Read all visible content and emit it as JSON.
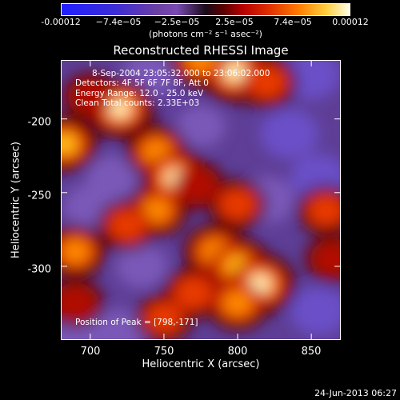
{
  "chart_data": {
    "type": "heatmap",
    "title": "Reconstructed RHESSI Image",
    "xlabel": "Heliocentric X (arcsec)",
    "ylabel": "Heliocentric Y (arcsec)",
    "xlim": [
      680,
      870
    ],
    "ylim": [
      -350,
      -160
    ],
    "x_ticks": [
      "700",
      "750",
      "800",
      "850"
    ],
    "y_ticks": [
      "-200",
      "-250",
      "-300"
    ],
    "colorbar": {
      "ticks": [
        "-0.00012",
        "−7.4e−05",
        "−2.5e−05",
        "2.5e−05",
        "7.4e−05",
        "0.00012"
      ],
      "units": "(photons cm⁻² s⁻¹ asec⁻²)",
      "range": [
        -0.00012,
        0.00012
      ]
    },
    "annotations": [
      "8-Sep-2004 23:05:32.000 to 23:06:02.000",
      "Detectors: 4F 5F 6F 7F 8F, Att 0",
      "Energy Range: 12.0 - 25.0 keV",
      "Clean    Total counts: 2.33E+03",
      "Position of Peak = [798,-171]"
    ],
    "peak": [
      798,
      -171
    ],
    "blobs": [
      {
        "x": 798,
        "y": -168,
        "v": 1.0
      },
      {
        "x": 775,
        "y": -160,
        "v": 0.6
      },
      {
        "x": 820,
        "y": -175,
        "v": 0.5
      },
      {
        "x": 720,
        "y": -193,
        "v": 0.85
      },
      {
        "x": 683,
        "y": -217,
        "v": 0.7
      },
      {
        "x": 700,
        "y": -185,
        "v": 0.3
      },
      {
        "x": 745,
        "y": -222,
        "v": 0.55
      },
      {
        "x": 758,
        "y": -240,
        "v": 0.9
      },
      {
        "x": 745,
        "y": -262,
        "v": 0.55
      },
      {
        "x": 772,
        "y": -245,
        "v": 0.35
      },
      {
        "x": 800,
        "y": -258,
        "v": 0.4
      },
      {
        "x": 785,
        "y": -290,
        "v": 0.65
      },
      {
        "x": 800,
        "y": -300,
        "v": 0.75
      },
      {
        "x": 815,
        "y": -312,
        "v": 0.95
      },
      {
        "x": 800,
        "y": -325,
        "v": 0.6
      },
      {
        "x": 770,
        "y": -318,
        "v": 0.5
      },
      {
        "x": 750,
        "y": -335,
        "v": 0.4
      },
      {
        "x": 690,
        "y": -290,
        "v": 0.55
      },
      {
        "x": 725,
        "y": -272,
        "v": 0.45
      },
      {
        "x": 690,
        "y": -325,
        "v": 0.35
      },
      {
        "x": 860,
        "y": -262,
        "v": 0.4
      },
      {
        "x": 865,
        "y": -295,
        "v": 0.35
      },
      {
        "x": 850,
        "y": -170,
        "v": -0.7
      },
      {
        "x": 835,
        "y": -210,
        "v": -0.75
      },
      {
        "x": 855,
        "y": -240,
        "v": -0.65
      },
      {
        "x": 820,
        "y": -255,
        "v": -0.6
      },
      {
        "x": 855,
        "y": -330,
        "v": -0.7
      },
      {
        "x": 715,
        "y": -240,
        "v": -0.5
      },
      {
        "x": 700,
        "y": -260,
        "v": -0.55
      },
      {
        "x": 735,
        "y": -300,
        "v": -0.45
      },
      {
        "x": 720,
        "y": -345,
        "v": -0.6
      },
      {
        "x": 740,
        "y": -170,
        "v": -0.55
      },
      {
        "x": 775,
        "y": -205,
        "v": -0.35
      },
      {
        "x": 690,
        "y": -350,
        "v": -0.5
      }
    ]
  },
  "timestamp": "24-Jun-2013 06:27"
}
